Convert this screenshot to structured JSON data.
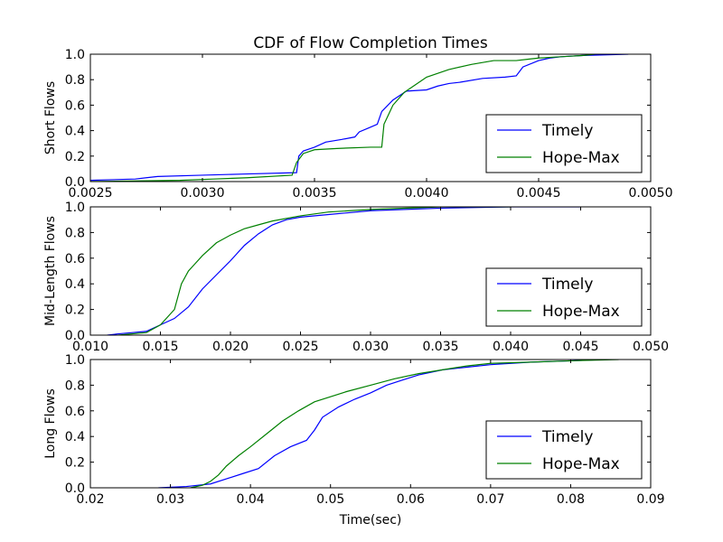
{
  "chart_data": [
    {
      "type": "line",
      "title": "CDF of Flow Completion Times",
      "xlabel": "",
      "ylabel": "Short Flows",
      "xlim": [
        0.0025,
        0.005
      ],
      "ylim": [
        0.0,
        1.0
      ],
      "x_ticks": [
        "0.0025",
        "0.0030",
        "0.0035",
        "0.0040",
        "0.0045",
        "0.0050"
      ],
      "y_ticks": [
        "0.0",
        "0.2",
        "0.4",
        "0.6",
        "0.8",
        "1.0"
      ],
      "grid": false,
      "legend": "lower-right",
      "series": [
        {
          "name": "Timely",
          "color": "#0000ff",
          "points": [
            [
              0.0025,
              0.01
            ],
            [
              0.0027,
              0.02
            ],
            [
              0.00275,
              0.03
            ],
            [
              0.0028,
              0.04
            ],
            [
              0.003,
              0.05
            ],
            [
              0.0032,
              0.06
            ],
            [
              0.00342,
              0.07
            ],
            [
              0.00343,
              0.2
            ],
            [
              0.00345,
              0.24
            ],
            [
              0.0035,
              0.27
            ],
            [
              0.00355,
              0.31
            ],
            [
              0.00362,
              0.33
            ],
            [
              0.00368,
              0.35
            ],
            [
              0.0037,
              0.39
            ],
            [
              0.00374,
              0.42
            ],
            [
              0.00378,
              0.45
            ],
            [
              0.0038,
              0.55
            ],
            [
              0.00385,
              0.64
            ],
            [
              0.00391,
              0.71
            ],
            [
              0.004,
              0.72
            ],
            [
              0.00405,
              0.75
            ],
            [
              0.0041,
              0.77
            ],
            [
              0.00415,
              0.78
            ],
            [
              0.00425,
              0.81
            ],
            [
              0.00435,
              0.82
            ],
            [
              0.0044,
              0.83
            ],
            [
              0.00443,
              0.9
            ],
            [
              0.0045,
              0.95
            ],
            [
              0.00455,
              0.97
            ],
            [
              0.0046,
              0.98
            ],
            [
              0.0047,
              0.99
            ],
            [
              0.0049,
              1.0
            ]
          ]
        },
        {
          "name": "Hope-Max",
          "color": "#008000",
          "points": [
            [
              0.0025,
              0.0
            ],
            [
              0.0029,
              0.01
            ],
            [
              0.00305,
              0.02
            ],
            [
              0.0032,
              0.03
            ],
            [
              0.0034,
              0.05
            ],
            [
              0.00342,
              0.15
            ],
            [
              0.00345,
              0.22
            ],
            [
              0.0035,
              0.25
            ],
            [
              0.0036,
              0.26
            ],
            [
              0.00375,
              0.27
            ],
            [
              0.0038,
              0.27
            ],
            [
              0.00381,
              0.45
            ],
            [
              0.00385,
              0.6
            ],
            [
              0.0039,
              0.7
            ],
            [
              0.00395,
              0.76
            ],
            [
              0.004,
              0.82
            ],
            [
              0.0041,
              0.88
            ],
            [
              0.0042,
              0.92
            ],
            [
              0.0043,
              0.95
            ],
            [
              0.0044,
              0.95
            ],
            [
              0.00445,
              0.96
            ],
            [
              0.0045,
              0.97
            ],
            [
              0.0046,
              0.98
            ],
            [
              0.0047,
              0.99
            ],
            [
              0.00475,
              1.0
            ]
          ]
        }
      ]
    },
    {
      "type": "line",
      "title": "",
      "xlabel": "",
      "ylabel": "Mid-Length Flows",
      "xlim": [
        0.01,
        0.05
      ],
      "ylim": [
        0.0,
        1.0
      ],
      "x_ticks": [
        "0.010",
        "0.015",
        "0.020",
        "0.025",
        "0.030",
        "0.035",
        "0.040",
        "0.045",
        "0.050"
      ],
      "y_ticks": [
        "0.0",
        "0.2",
        "0.4",
        "0.6",
        "0.8",
        "1.0"
      ],
      "grid": false,
      "legend": "lower-right",
      "series": [
        {
          "name": "Timely",
          "color": "#0000ff",
          "points": [
            [
              0.0112,
              0.0
            ],
            [
              0.012,
              0.01
            ],
            [
              0.013,
              0.02
            ],
            [
              0.014,
              0.03
            ],
            [
              0.015,
              0.08
            ],
            [
              0.016,
              0.13
            ],
            [
              0.017,
              0.22
            ],
            [
              0.018,
              0.36
            ],
            [
              0.019,
              0.47
            ],
            [
              0.02,
              0.58
            ],
            [
              0.021,
              0.7
            ],
            [
              0.022,
              0.79
            ],
            [
              0.023,
              0.86
            ],
            [
              0.024,
              0.9
            ],
            [
              0.025,
              0.92
            ],
            [
              0.027,
              0.94
            ],
            [
              0.03,
              0.97
            ],
            [
              0.035,
              0.99
            ],
            [
              0.04,
              1.0
            ],
            [
              0.045,
              1.0
            ]
          ]
        },
        {
          "name": "Hope-Max",
          "color": "#008000",
          "points": [
            [
              0.012,
              0.0
            ],
            [
              0.013,
              0.01
            ],
            [
              0.014,
              0.02
            ],
            [
              0.015,
              0.08
            ],
            [
              0.016,
              0.2
            ],
            [
              0.0165,
              0.4
            ],
            [
              0.017,
              0.5
            ],
            [
              0.0175,
              0.56
            ],
            [
              0.018,
              0.62
            ],
            [
              0.019,
              0.72
            ],
            [
              0.02,
              0.78
            ],
            [
              0.021,
              0.83
            ],
            [
              0.022,
              0.86
            ],
            [
              0.023,
              0.89
            ],
            [
              0.025,
              0.93
            ],
            [
              0.027,
              0.96
            ],
            [
              0.03,
              0.98
            ],
            [
              0.035,
              1.0
            ],
            [
              0.04,
              1.0
            ]
          ]
        }
      ]
    },
    {
      "type": "line",
      "title": "",
      "xlabel": "Time(sec)",
      "ylabel": "Long Flows",
      "xlim": [
        0.02,
        0.09
      ],
      "ylim": [
        0.0,
        1.0
      ],
      "x_ticks": [
        "0.02",
        "0.03",
        "0.04",
        "0.05",
        "0.06",
        "0.07",
        "0.08",
        "0.09"
      ],
      "y_ticks": [
        "0.0",
        "0.2",
        "0.4",
        "0.6",
        "0.8",
        "1.0"
      ],
      "grid": false,
      "legend": "lower-right",
      "series": [
        {
          "name": "Timely",
          "color": "#0000ff",
          "points": [
            [
              0.0285,
              0.0
            ],
            [
              0.032,
              0.01
            ],
            [
              0.035,
              0.03
            ],
            [
              0.037,
              0.07
            ],
            [
              0.039,
              0.11
            ],
            [
              0.041,
              0.15
            ],
            [
              0.043,
              0.25
            ],
            [
              0.045,
              0.32
            ],
            [
              0.047,
              0.37
            ],
            [
              0.048,
              0.45
            ],
            [
              0.049,
              0.55
            ],
            [
              0.051,
              0.63
            ],
            [
              0.053,
              0.69
            ],
            [
              0.055,
              0.74
            ],
            [
              0.057,
              0.8
            ],
            [
              0.059,
              0.84
            ],
            [
              0.061,
              0.88
            ],
            [
              0.064,
              0.92
            ],
            [
              0.067,
              0.94
            ],
            [
              0.07,
              0.96
            ],
            [
              0.075,
              0.98
            ],
            [
              0.08,
              0.99
            ],
            [
              0.084,
              1.0
            ]
          ]
        },
        {
          "name": "Hope-Max",
          "color": "#008000",
          "points": [
            [
              0.0325,
              0.0
            ],
            [
              0.034,
              0.02
            ],
            [
              0.035,
              0.05
            ],
            [
              0.036,
              0.1
            ],
            [
              0.037,
              0.17
            ],
            [
              0.0385,
              0.25
            ],
            [
              0.04,
              0.32
            ],
            [
              0.042,
              0.42
            ],
            [
              0.044,
              0.52
            ],
            [
              0.046,
              0.6
            ],
            [
              0.048,
              0.67
            ],
            [
              0.05,
              0.71
            ],
            [
              0.052,
              0.75
            ],
            [
              0.055,
              0.8
            ],
            [
              0.058,
              0.85
            ],
            [
              0.061,
              0.89
            ],
            [
              0.064,
              0.92
            ],
            [
              0.067,
              0.95
            ],
            [
              0.07,
              0.97
            ],
            [
              0.075,
              0.98
            ],
            [
              0.08,
              0.99
            ],
            [
              0.086,
              1.0
            ]
          ]
        }
      ]
    }
  ]
}
